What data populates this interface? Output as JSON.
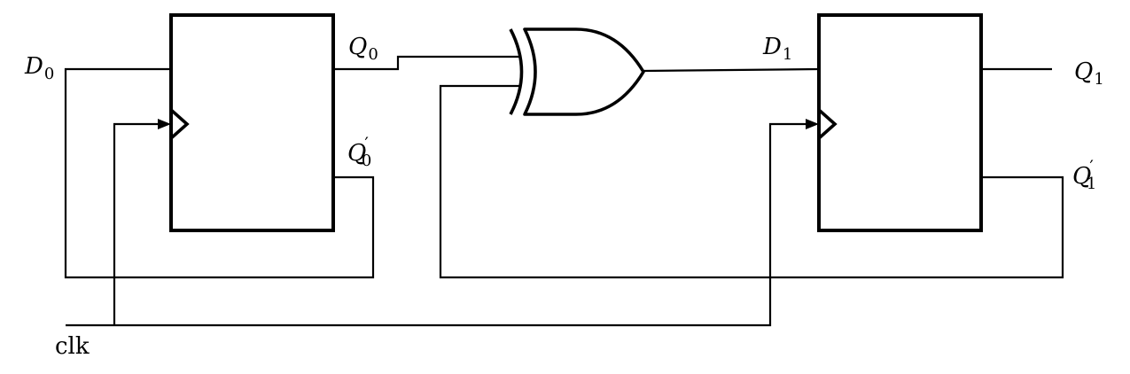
{
  "labels": {
    "d0": {
      "main": "D",
      "sub": "0"
    },
    "q0": {
      "main": "Q",
      "sub": "0"
    },
    "q0_bar": {
      "main": "Q",
      "prime": "′",
      "sub": "0"
    },
    "d1": {
      "main": "D",
      "sub": "1"
    },
    "q1": {
      "main": "Q",
      "sub": "1"
    },
    "q1_bar": {
      "main": "Q",
      "prime": "′",
      "sub": "1"
    },
    "clk": "clk"
  }
}
